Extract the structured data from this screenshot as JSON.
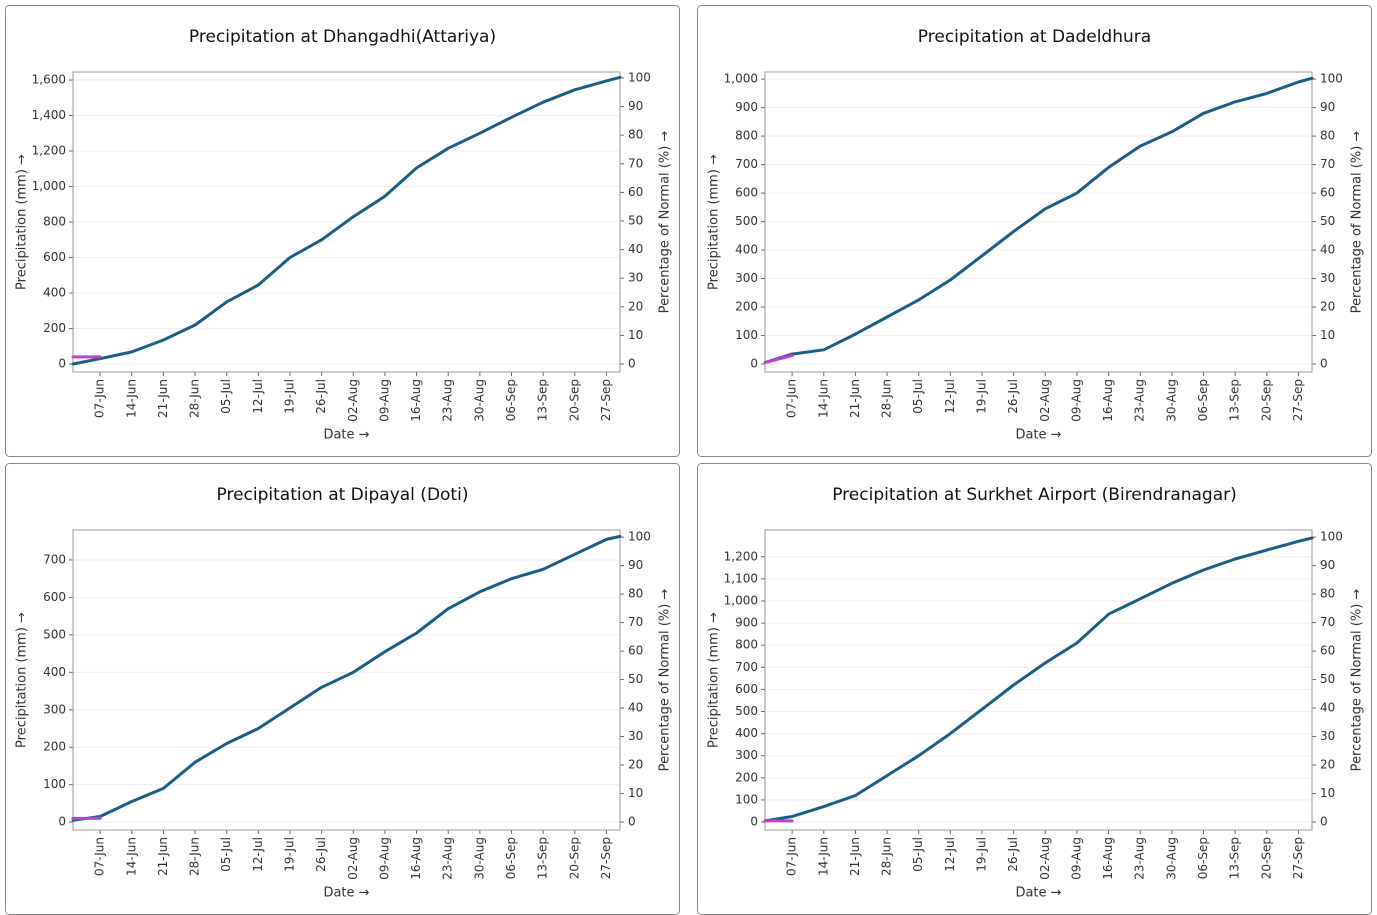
{
  "chart_data": [
    {
      "type": "line",
      "title": "Precipitation at Dhangadhi(Attariya)",
      "xlabel": "Date →",
      "ylabel": "Precipitation (mm) →",
      "y2label": "Percentage of Normal (%) →",
      "x": [
        "01-Jun",
        "07-Jun",
        "14-Jun",
        "21-Jun",
        "28-Jun",
        "05-Jul",
        "12-Jul",
        "19-Jul",
        "26-Jul",
        "02-Aug",
        "09-Aug",
        "16-Aug",
        "23-Aug",
        "30-Aug",
        "06-Sep",
        "13-Sep",
        "20-Sep",
        "27-Sep",
        "30-Sep"
      ],
      "xlim": [
        "01-Jun",
        "30-Sep"
      ],
      "xticks": [
        "07-Jun",
        "14-Jun",
        "21-Jun",
        "28-Jun",
        "05-Jul",
        "12-Jul",
        "19-Jul",
        "26-Jul",
        "02-Aug",
        "09-Aug",
        "16-Aug",
        "23-Aug",
        "30-Aug",
        "06-Sep",
        "13-Sep",
        "20-Sep",
        "27-Sep"
      ],
      "series": [
        {
          "color": "#1b5e85",
          "values": [
            0,
            30,
            68,
            135,
            220,
            350,
            445,
            600,
            700,
            830,
            945,
            1105,
            1215,
            1300,
            1390,
            1475,
            1545,
            1595,
            1615
          ]
        },
        {
          "color": "#c03fd0",
          "values": [
            40,
            40,
            null,
            null,
            null,
            null,
            null,
            null,
            null,
            null,
            null,
            null,
            null,
            null,
            null,
            null,
            null,
            null,
            null
          ]
        }
      ],
      "ylim": [
        -45,
        1645
      ],
      "yticks": [
        0,
        200,
        400,
        600,
        800,
        {
          "value": 1000,
          "label": "1,000"
        },
        {
          "value": 1200,
          "label": "1,200"
        },
        {
          "value": 1400,
          "label": "1,400"
        },
        {
          "value": 1600,
          "label": "1,600"
        }
      ],
      "y2lim": [
        -2.8,
        102.1
      ],
      "y2ticks": [
        0,
        10,
        20,
        30,
        40,
        50,
        60,
        70,
        80,
        90,
        100
      ],
      "grid": true
    },
    {
      "type": "line",
      "title": "Precipitation at Dadeldhura",
      "xlabel": "Date →",
      "ylabel": "Precipitation (mm) →",
      "y2label": "Percentage of Normal (%) →",
      "x": [
        "01-Jun",
        "07-Jun",
        "14-Jun",
        "21-Jun",
        "28-Jun",
        "05-Jul",
        "12-Jul",
        "19-Jul",
        "26-Jul",
        "02-Aug",
        "09-Aug",
        "16-Aug",
        "23-Aug",
        "30-Aug",
        "06-Sep",
        "13-Sep",
        "20-Sep",
        "27-Sep",
        "30-Sep"
      ],
      "xlim": [
        "01-Jun",
        "30-Sep"
      ],
      "xticks": [
        "07-Jun",
        "14-Jun",
        "21-Jun",
        "28-Jun",
        "05-Jul",
        "12-Jul",
        "19-Jul",
        "26-Jul",
        "02-Aug",
        "09-Aug",
        "16-Aug",
        "23-Aug",
        "30-Aug",
        "06-Sep",
        "13-Sep",
        "20-Sep",
        "27-Sep"
      ],
      "series": [
        {
          "color": "#1b5e85",
          "values": [
            5,
            35,
            50,
            105,
            165,
            225,
            295,
            380,
            465,
            545,
            600,
            690,
            765,
            815,
            880,
            920,
            950,
            990,
            1003
          ]
        },
        {
          "color": "#c03fd0",
          "values": [
            5,
            30,
            null,
            null,
            null,
            null,
            null,
            null,
            null,
            null,
            null,
            null,
            null,
            null,
            null,
            null,
            null,
            null,
            null
          ]
        }
      ],
      "ylim": [
        -28,
        1025
      ],
      "yticks": [
        0,
        100,
        200,
        300,
        400,
        500,
        600,
        700,
        800,
        900,
        {
          "value": 1000,
          "label": "1,000"
        }
      ],
      "y2lim": [
        -2.8,
        102.5
      ],
      "y2ticks": [
        0,
        10,
        20,
        30,
        40,
        50,
        60,
        70,
        80,
        90,
        100
      ],
      "grid": true
    },
    {
      "type": "line",
      "title": "Precipitation at Dipayal (Doti)",
      "xlabel": "Date →",
      "ylabel": "Precipitation (mm) →",
      "y2label": "Percentage of Normal (%) →",
      "x": [
        "01-Jun",
        "07-Jun",
        "14-Jun",
        "21-Jun",
        "28-Jun",
        "05-Jul",
        "12-Jul",
        "19-Jul",
        "26-Jul",
        "02-Aug",
        "09-Aug",
        "16-Aug",
        "23-Aug",
        "30-Aug",
        "06-Sep",
        "13-Sep",
        "20-Sep",
        "27-Sep",
        "30-Sep"
      ],
      "xlim": [
        "01-Jun",
        "30-Sep"
      ],
      "xticks": [
        "07-Jun",
        "14-Jun",
        "21-Jun",
        "28-Jun",
        "05-Jul",
        "12-Jul",
        "19-Jul",
        "26-Jul",
        "02-Aug",
        "09-Aug",
        "16-Aug",
        "23-Aug",
        "30-Aug",
        "06-Sep",
        "13-Sep",
        "20-Sep",
        "27-Sep"
      ],
      "series": [
        {
          "color": "#1b5e85",
          "values": [
            5,
            15,
            55,
            90,
            160,
            210,
            250,
            305,
            360,
            400,
            455,
            505,
            570,
            615,
            650,
            675,
            715,
            755,
            763
          ]
        },
        {
          "color": "#c03fd0",
          "values": [
            10,
            10,
            null,
            null,
            null,
            null,
            null,
            null,
            null,
            null,
            null,
            null,
            null,
            null,
            null,
            null,
            null,
            null,
            null
          ]
        }
      ],
      "ylim": [
        -21,
        780
      ],
      "yticks": [
        0,
        100,
        200,
        300,
        400,
        500,
        600,
        700
      ],
      "y2lim": [
        -2.8,
        102.5
      ],
      "y2ticks": [
        0,
        10,
        20,
        30,
        40,
        50,
        60,
        70,
        80,
        90,
        100
      ],
      "grid": true
    },
    {
      "type": "line",
      "title": "Precipitation at Surkhet Airport (Birendranagar)",
      "xlabel": "Date →",
      "ylabel": "Precipitation (mm) →",
      "y2label": "Percentage of Normal (%) →",
      "x": [
        "01-Jun",
        "07-Jun",
        "14-Jun",
        "21-Jun",
        "28-Jun",
        "05-Jul",
        "12-Jul",
        "19-Jul",
        "26-Jul",
        "02-Aug",
        "09-Aug",
        "16-Aug",
        "23-Aug",
        "30-Aug",
        "06-Sep",
        "13-Sep",
        "20-Sep",
        "27-Sep",
        "30-Sep"
      ],
      "xlim": [
        "01-Jun",
        "30-Sep"
      ],
      "xticks": [
        "07-Jun",
        "14-Jun",
        "21-Jun",
        "28-Jun",
        "05-Jul",
        "12-Jul",
        "19-Jul",
        "26-Jul",
        "02-Aug",
        "09-Aug",
        "16-Aug",
        "23-Aug",
        "30-Aug",
        "06-Sep",
        "13-Sep",
        "20-Sep",
        "27-Sep"
      ],
      "series": [
        {
          "color": "#1b5e85",
          "values": [
            5,
            25,
            70,
            120,
            210,
            300,
            400,
            510,
            620,
            720,
            810,
            940,
            1010,
            1080,
            1140,
            1190,
            1230,
            1270,
            1285
          ]
        },
        {
          "color": "#c03fd0",
          "values": [
            5,
            5,
            null,
            null,
            null,
            null,
            null,
            null,
            null,
            null,
            null,
            null,
            null,
            null,
            null,
            null,
            null,
            null,
            null
          ]
        }
      ],
      "ylim": [
        -36,
        1321
      ],
      "yticks": [
        0,
        100,
        200,
        300,
        400,
        500,
        600,
        700,
        800,
        900,
        {
          "value": 1000,
          "label": "1,000"
        },
        {
          "value": 1100,
          "label": "1,100"
        },
        {
          "value": 1200,
          "label": "1,200"
        }
      ],
      "y2lim": [
        -2.8,
        102.5
      ],
      "y2ticks": [
        0,
        10,
        20,
        30,
        40,
        50,
        60,
        70,
        80,
        90,
        100
      ],
      "grid": true
    }
  ]
}
